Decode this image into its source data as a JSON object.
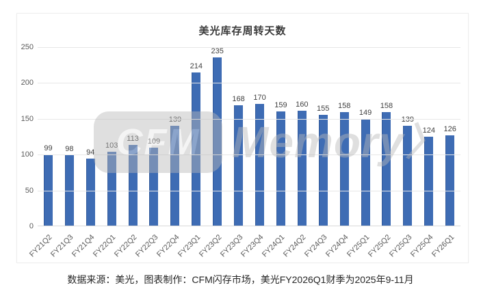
{
  "chart_data": {
    "type": "bar",
    "title": "美光库存周转天数",
    "categories": [
      "FY21Q2",
      "FY21Q3",
      "FY21Q4",
      "FY22Q1",
      "FY22Q2",
      "FY22Q3",
      "FY22Q4",
      "FY23Q1",
      "FY23Q2",
      "FY23Q3",
      "FY23Q4",
      "FY24Q1",
      "FY24Q2",
      "FY24Q3",
      "FY24Q4",
      "FY25Q1",
      "FY25Q2",
      "FY25Q3",
      "FY25Q4",
      "FY26Q1"
    ],
    "values": [
      99,
      98,
      94,
      103,
      113,
      109,
      139,
      214,
      235,
      168,
      170,
      159,
      160,
      155,
      158,
      149,
      158,
      139,
      124,
      126
    ],
    "xlabel": "",
    "ylabel": "",
    "ylim": [
      0,
      250
    ],
    "yticks": [
      0,
      50,
      100,
      150,
      200,
      250
    ],
    "grid": true,
    "legend": "none",
    "value_labels": true,
    "bar_color": "#3e6cb4",
    "gridline_color": "#e7e7e7"
  },
  "watermark": {
    "box_text": "CFM",
    "text": "Memory",
    "arrow": "〉"
  },
  "caption": {
    "text": "数据来源：美光，图表制作：CFM闪存市场，美光FY2026Q1财季为2025年9-11月"
  }
}
